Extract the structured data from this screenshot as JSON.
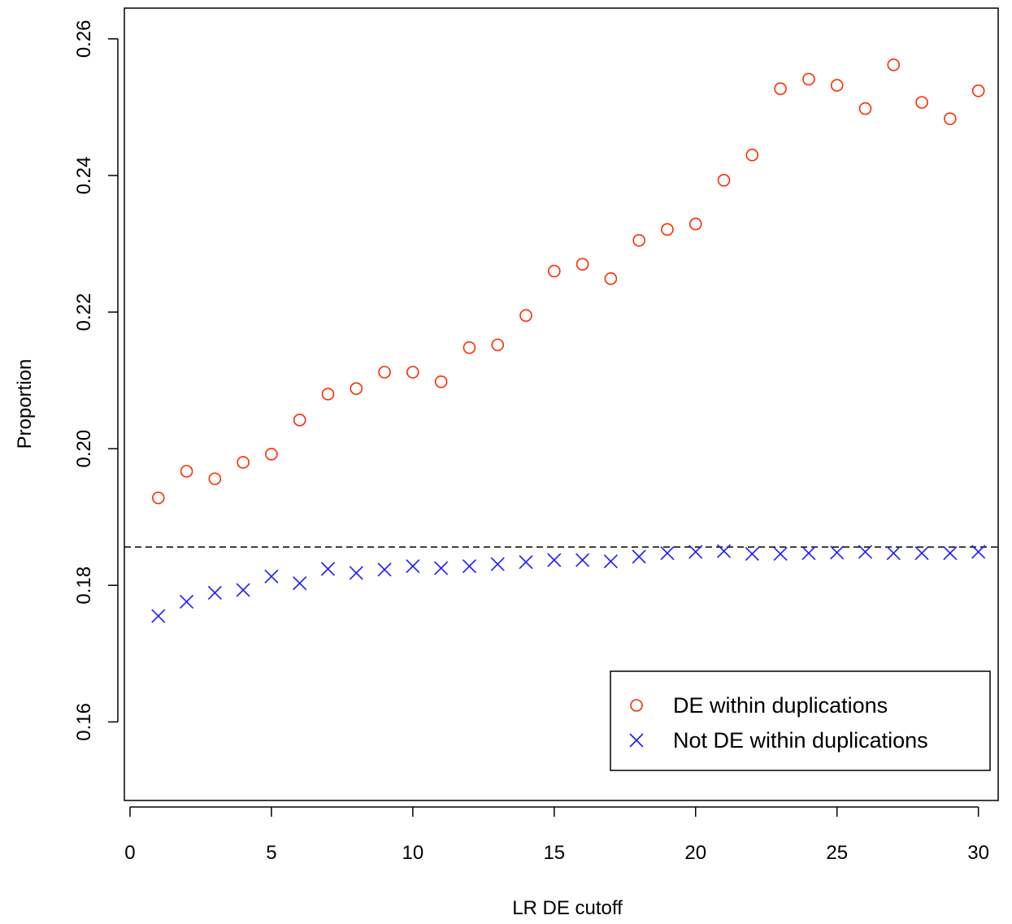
{
  "chart_data": {
    "type": "scatter",
    "title": "",
    "xlabel": "LR DE cutoff",
    "ylabel": "Proportion",
    "xlim": [
      -0.2,
      30.7
    ],
    "ylim": [
      0.1485,
      0.2645
    ],
    "xticks": [
      0,
      5,
      10,
      15,
      20,
      25,
      30
    ],
    "yticks": [
      0.16,
      0.18,
      0.2,
      0.22,
      0.24,
      0.26
    ],
    "ytick_labels": [
      "0.16",
      "0.18",
      "0.20",
      "0.22",
      "0.24",
      "0.26"
    ],
    "grid": false,
    "legend_position": "bottom-right",
    "reference_line": {
      "y": 0.1856,
      "style": "dashed",
      "color": "#000000"
    },
    "x": [
      1,
      2,
      3,
      4,
      5,
      6,
      7,
      8,
      9,
      10,
      11,
      12,
      13,
      14,
      15,
      16,
      17,
      18,
      19,
      20,
      21,
      22,
      23,
      24,
      25,
      26,
      27,
      28,
      29,
      30
    ],
    "series": [
      {
        "name": "DE within duplications",
        "marker": "circle",
        "color": "#ff2a00",
        "values": [
          0.1928,
          0.1967,
          0.1956,
          0.198,
          0.1992,
          0.2042,
          0.208,
          0.2088,
          0.2112,
          0.2112,
          0.2098,
          0.2148,
          0.2152,
          0.2195,
          0.226,
          0.227,
          0.2249,
          0.2305,
          0.2321,
          0.2329,
          0.2393,
          0.243,
          0.2527,
          0.2541,
          0.2532,
          0.2498,
          0.2562,
          0.2507,
          0.2483,
          0.2524
        ]
      },
      {
        "name": "Not DE within duplications",
        "marker": "cross",
        "color": "#1a1aff",
        "values": [
          0.1755,
          0.1776,
          0.1789,
          0.1793,
          0.1813,
          0.1803,
          0.1824,
          0.1818,
          0.1823,
          0.1828,
          0.1825,
          0.1828,
          0.1831,
          0.1834,
          0.1837,
          0.1837,
          0.1835,
          0.1842,
          0.1847,
          0.1849,
          0.185,
          0.1846,
          0.1846,
          0.1847,
          0.1848,
          0.1849,
          0.1847,
          0.1847,
          0.1847,
          0.1849
        ]
      }
    ]
  }
}
